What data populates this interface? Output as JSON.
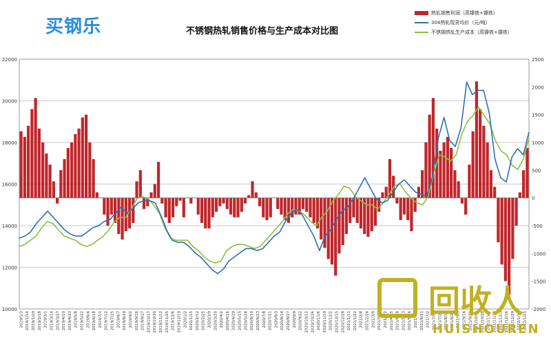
{
  "logo": {
    "text": "买钢乐"
  },
  "watermark": {
    "text": "回收人",
    "subtext": "HUISHOUREN"
  },
  "colors": {
    "bar": "#c0262b",
    "price_line": "#2f6db5",
    "cost_line": "#8cbf3f",
    "grid": "#c8c8c8"
  },
  "chart_data": {
    "type": "bar+line",
    "title": "不锈钢热轧销售价格与生产成本对比图",
    "legend_placement": "top-right",
    "grid": true,
    "y_left": {
      "ylim": [
        10000,
        22000
      ],
      "ticks": [
        10000,
        12000,
        14000,
        16000,
        18000,
        20000,
        22000
      ]
    },
    "y_right": {
      "ylim": [
        -2000,
        2500
      ],
      "ticks": [
        -2000,
        -1500,
        -1000,
        -500,
        0,
        500,
        1000,
        1500,
        2000,
        2500
      ]
    },
    "x_tick_labels": [
      "2019/1/3",
      "2019/1/16",
      "2019/1/29",
      "2019/2/18",
      "2019/3/1",
      "2019/3/14",
      "2019/3/27",
      "2019/4/10",
      "2019/4/23",
      "2019/5/8",
      "2019/5/22",
      "2019/6/4",
      "2019/6/18",
      "2019/7/1",
      "2019/7/12",
      "2019/7/25",
      "2019/8/7",
      "2019/8/20",
      "2019/9/2",
      "2019/9/16",
      "2019/9/27",
      "2019/10/17",
      "2019/10/30",
      "2019/11/12",
      "2019/11/25",
      "2019/12/6",
      "2019/12/19",
      "2020/1/2",
      "2020/1/15",
      "2020/2/12",
      "2020/2/25",
      "2020/3/9",
      "2020/3/20",
      "2020/4/2",
      "2020/4/16",
      "2020/4/29",
      "2020/5/15",
      "2020/5/28",
      "2020/6/10",
      "2020/6/23",
      "2020/7/8",
      "2020/7/21",
      "2020/8/3",
      "2020/8/14",
      "2020/8/27",
      "2020/9/9",
      "2020/9/22",
      "2020/10/12",
      "2020/10/26",
      "2020/11/6",
      "2020/11/19",
      "2020/12/2",
      "2020/12/15",
      "2020/12/28",
      "2021/1/11",
      "2021/1/22",
      "2021/2/4",
      "2021/2/24",
      "2021/3/9",
      "2021/3/22",
      "2021/4/2",
      "2021/4/15",
      "2021/4/28",
      "2021/5/13",
      "2021/5/26",
      "2021/6/8",
      "2021/6/21",
      "2021/7/2",
      "2021/7/15",
      "2021/7/28",
      "2021/8/10",
      "2021/8/23",
      "2021/9/3",
      "2021/9/16",
      "2021/9/29",
      "2021/10/15",
      "2021/10/28",
      "2021/11/9",
      "2021/11/22",
      "2021/12/3",
      "2021/12/16",
      "2021/12/29",
      "2022/1/12",
      "2022/1/25"
    ],
    "series": [
      {
        "name": "热轧销售利润（高镍铁+镍铁）",
        "type": "bar",
        "axis": "right",
        "values": [
          1200,
          1100,
          1300,
          1600,
          1800,
          1250,
          1000,
          800,
          600,
          300,
          -100,
          500,
          700,
          900,
          1000,
          1150,
          1250,
          1450,
          1500,
          1000,
          700,
          100,
          0,
          -300,
          -500,
          -300,
          -450,
          -650,
          -750,
          -600,
          -550,
          -450,
          300,
          500,
          -200,
          -150,
          100,
          250,
          650,
          -100,
          -350,
          -450,
          -350,
          -150,
          -50,
          -350,
          0,
          -100,
          0,
          -300,
          -450,
          -550,
          -550,
          -350,
          -250,
          -150,
          -100,
          -200,
          -300,
          -350,
          -350,
          -250,
          -100,
          50,
          300,
          100,
          -150,
          -350,
          -400,
          -350,
          0,
          -200,
          -300,
          -400,
          -450,
          -350,
          -300,
          -300,
          -200,
          -250,
          -350,
          -450,
          -550,
          -750,
          -900,
          -1100,
          -1200,
          -1400,
          -1000,
          -850,
          -650,
          -450,
          -350,
          -450,
          -550,
          -650,
          -700,
          -600,
          -500,
          -250,
          100,
          200,
          700,
          400,
          -100,
          -400,
          -300,
          -400,
          -600,
          -250,
          200,
          500,
          1000,
          1500,
          1800,
          1250,
          850,
          1000,
          1100,
          900,
          500,
          300,
          -100,
          -300,
          600,
          1200,
          2100,
          1600,
          1300,
          1000,
          500,
          200,
          -800,
          -1200,
          -1500,
          -1750,
          -1100,
          -500,
          100,
          500,
          900
        ],
        "note": "daily bars sampled evenly across the x range"
      },
      {
        "name": "304热轧现货均价（元/吨）",
        "type": "line",
        "axis": "left",
        "values": [
          13400,
          13500,
          13700,
          14100,
          14400,
          14700,
          14400,
          14100,
          13800,
          13600,
          13500,
          13500,
          13700,
          13900,
          14000,
          14200,
          14300,
          14600,
          14900,
          14600,
          14800,
          15100,
          15200,
          15200,
          15100,
          14500,
          13800,
          13300,
          13200,
          13200,
          13000,
          12700,
          12500,
          12200,
          11900,
          11700,
          11900,
          12300,
          12500,
          12700,
          12900,
          12900,
          12800,
          12900,
          13200,
          13500,
          13700,
          14200,
          14600,
          14800,
          14500,
          14000,
          13500,
          12800,
          13500,
          13800,
          14300,
          14700,
          14900,
          15300,
          15800,
          16300,
          15800,
          15300,
          15100,
          15200,
          15600,
          16000,
          16200,
          15900,
          15600,
          15500,
          15400,
          16400,
          18200,
          19200,
          18100,
          17800,
          18700,
          20900,
          20300,
          20500,
          20500,
          19400,
          17200,
          16300,
          16100,
          17300,
          17700,
          17400,
          18500
        ]
      },
      {
        "name": "不锈钢热轧生产成本（高镍铁+镍铁）",
        "type": "line",
        "axis": "left",
        "values": [
          13000,
          13100,
          13300,
          13500,
          13900,
          14200,
          14100,
          13800,
          13500,
          13400,
          13300,
          13100,
          13000,
          13100,
          13300,
          13500,
          13800,
          14200,
          14400,
          14400,
          14800,
          15300,
          15400,
          15300,
          15000,
          14600,
          13900,
          13400,
          13300,
          13300,
          13300,
          13000,
          12800,
          12500,
          12300,
          12200,
          12300,
          12800,
          13000,
          13100,
          13100,
          13000,
          12900,
          13000,
          13300,
          13600,
          13900,
          14200,
          14600,
          14800,
          14700,
          14500,
          14200,
          14000,
          14400,
          14700,
          15200,
          15500,
          15900,
          15800,
          15400,
          15200,
          15000,
          15000,
          14800,
          15100,
          15500,
          15900,
          16000,
          15600,
          15300,
          15100,
          15000,
          15400,
          16500,
          17400,
          17300,
          17100,
          17400,
          18400,
          19000,
          19300,
          19700,
          19300,
          18900,
          18100,
          17600,
          17400,
          16900,
          16700,
          17200,
          18200
        ]
      }
    ]
  }
}
